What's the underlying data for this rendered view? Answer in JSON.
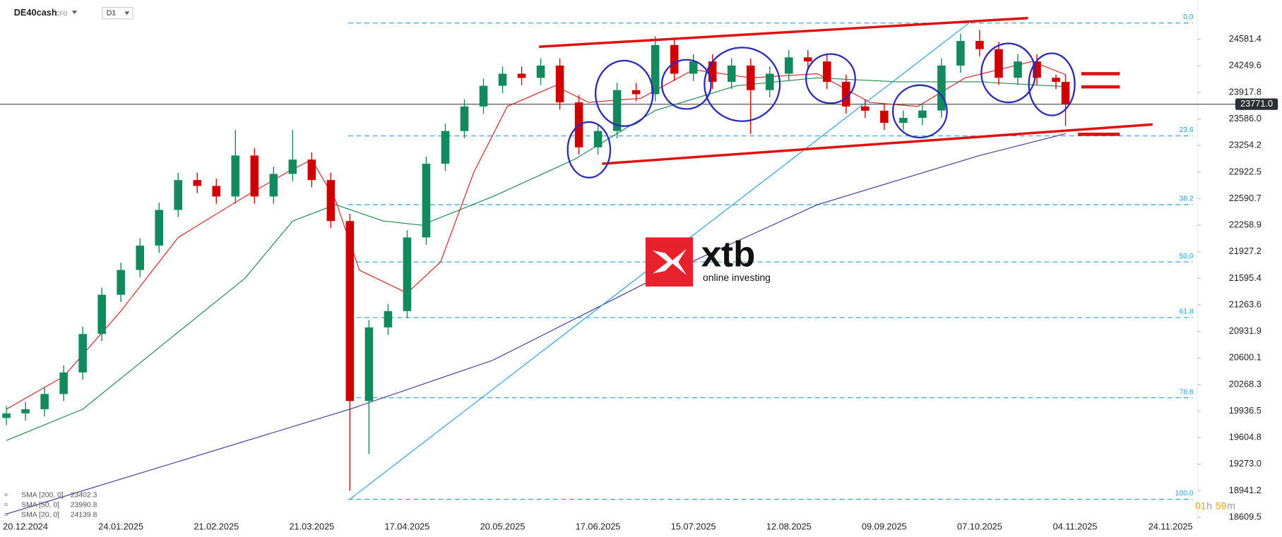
{
  "header": {
    "symbol": "DE40cash",
    "instrument_type": "CFD",
    "timeframe": "D1"
  },
  "logo": {
    "brand": "xtb",
    "tagline": "online investing"
  },
  "timer": {
    "hours": "01",
    "hours_unit": "h",
    "minutes": "59",
    "minutes_unit": "m"
  },
  "chart_data": {
    "type": "candlestick",
    "up_color": "#138a5e",
    "down_color": "#d10000",
    "grid": false,
    "x": [
      -4,
      0,
      4,
      8,
      12,
      16,
      20,
      24,
      28,
      32,
      36,
      40,
      44,
      48,
      52,
      56,
      60,
      64,
      68,
      72,
      76,
      80,
      84,
      88,
      92,
      96,
      100,
      104,
      108,
      112,
      116,
      120,
      124,
      128,
      132,
      136,
      140,
      144,
      148,
      152,
      156,
      160,
      164,
      168,
      172,
      176,
      180,
      184,
      188,
      192,
      196,
      200,
      204,
      208,
      212,
      216,
      218
    ],
    "open": [
      19850,
      19908,
      19960,
      20150,
      20419,
      20900,
      21390,
      21700,
      22004,
      22450,
      22823,
      22750,
      22618,
      23130,
      22618,
      22900,
      23079,
      22823,
      22311,
      20062,
      20982,
      21186,
      22106,
      23027,
      23436,
      23743,
      24001,
      24152,
      24100,
      24254,
      23794,
      23232,
      23436,
      23947,
      23896,
      24510,
      24152,
      24305,
      24050,
      24254,
      23947,
      24152,
      24356,
      24305,
      24050,
      23743,
      23690,
      23538,
      23600,
      23692,
      24254,
      24561,
      24459,
      24101,
      24305,
      24101,
      24050
    ],
    "high": [
      19998,
      20050,
      20240,
      20509,
      20990,
      21480,
      21790,
      22094,
      22540,
      22913,
      22913,
      22840,
      23450,
      23220,
      22990,
      23450,
      23169,
      22913,
      22401,
      21072,
      21276,
      22196,
      23117,
      23526,
      23833,
      24091,
      24242,
      24242,
      24344,
      24344,
      23884,
      23526,
      24037,
      24037,
      24620,
      24600,
      24395,
      24395,
      24344,
      24344,
      24242,
      24446,
      24446,
      24395,
      24140,
      23833,
      23780,
      23690,
      23782,
      24344,
      24651,
      24700,
      24549,
      24395,
      24395,
      24140,
      24140
    ],
    "low": [
      19760,
      19818,
      19870,
      20060,
      20329,
      20810,
      21300,
      21610,
      21914,
      22360,
      22660,
      22528,
      22528,
      22528,
      22528,
      22810,
      22733,
      22221,
      18941,
      19400,
      20892,
      21096,
      22016,
      22937,
      23346,
      23653,
      23911,
      24010,
      24010,
      23704,
      23142,
      23142,
      23346,
      23806,
      23806,
      24062,
      24062,
      23960,
      23960,
      23400,
      23857,
      24062,
      24215,
      23960,
      23653,
      23600,
      23448,
      23448,
      23510,
      23602,
      24164,
      24369,
      24011,
      24011,
      24011,
      23960,
      23500
    ],
    "close": [
      19908,
      19960,
      20150,
      20419,
      20900,
      21390,
      21700,
      22004,
      22450,
      22823,
      22750,
      22618,
      23130,
      22618,
      22900,
      23079,
      22823,
      22311,
      20062,
      20982,
      21186,
      22106,
      23027,
      23436,
      23743,
      24001,
      24152,
      24100,
      24254,
      23794,
      23232,
      23436,
      23947,
      23896,
      24510,
      24152,
      24305,
      24050,
      24254,
      23947,
      24152,
      24356,
      24305,
      24050,
      23743,
      23690,
      23538,
      23600,
      23692,
      24254,
      24561,
      24459,
      24101,
      24305,
      24101,
      24050,
      23771
    ],
    "xlim": [
      -5,
      245
    ],
    "xticks": [
      {
        "value": 0,
        "label": "20.12.2024"
      },
      {
        "value": 20,
        "label": "24.01.2025"
      },
      {
        "value": 40,
        "label": "21.02.2025"
      },
      {
        "value": 60,
        "label": "21.03.2025"
      },
      {
        "value": 80,
        "label": "17.04.2025"
      },
      {
        "value": 100,
        "label": "20.05.2025"
      },
      {
        "value": 120,
        "label": "17.06.2025"
      },
      {
        "value": 140,
        "label": "15.07.2025"
      },
      {
        "value": 160,
        "label": "12.08.2025"
      },
      {
        "value": 180,
        "label": "09.09.2025"
      },
      {
        "value": 200,
        "label": "07.10.2025"
      },
      {
        "value": 220,
        "label": "04.11.2025"
      },
      {
        "value": 240,
        "label": "24.11.2025"
      }
    ],
    "ylim": [
      18527.7,
      25072
    ],
    "yticks": [
      24581.4,
      24249.6,
      23917.8,
      {
        "value": 23586,
        "label": "23586.0"
      },
      23254.2,
      22922.5,
      22590.7,
      22258.9,
      21927.2,
      21595.4,
      21263.6,
      20931.9,
      20600.1,
      20268.3,
      19936.5,
      19604.8,
      {
        "value": 19273,
        "label": "19273.0"
      },
      18941.2,
      18609.5
    ],
    "last_price": {
      "value": 23771,
      "label": "23771.0"
    },
    "fib_levels": [
      {
        "label": "0.0",
        "price": 24786
      },
      {
        "label": "23.6",
        "price": 23375
      },
      {
        "label": "38.2",
        "price": 22516
      },
      {
        "label": "50.0",
        "price": 21800
      },
      {
        "label": "61.8",
        "price": 21105
      },
      {
        "label": "78.6",
        "price": 20103
      },
      {
        "label": "100.0",
        "price": 18834
      }
    ],
    "series": [
      {
        "name": "SMA [200, 0]",
        "color": "#3c3c9e",
        "last_value": 23402.3,
        "x": [
          -4,
          68,
          98,
          132,
          166,
          200,
          218
        ],
        "values": [
          18650,
          19960,
          20573,
          21595,
          22516,
          23130,
          23402
        ]
      },
      {
        "name": "SMA [50, 0]",
        "color": "#1f8a4c",
        "last_value": 23990.8,
        "x": [
          -4,
          12,
          29,
          46,
          56,
          65,
          75,
          83,
          98,
          115,
          132,
          149,
          166,
          183,
          200,
          218
        ],
        "values": [
          19570,
          19960,
          20778,
          21595,
          22311,
          22516,
          22311,
          22260,
          22618,
          23079,
          23692,
          24001,
          24101,
          24050,
          24050,
          23990
        ]
      },
      {
        "name": "SMA [20, 0]",
        "color": "#d42020",
        "last_value": 24139.8,
        "x": [
          -4,
          8,
          20,
          32,
          46,
          55,
          60,
          65,
          70,
          80,
          87,
          94,
          101,
          111,
          118,
          129,
          140,
          152,
          166,
          177,
          187,
          197,
          211,
          218
        ],
        "values": [
          19960,
          20368,
          21186,
          22106,
          22618,
          22925,
          23079,
          22567,
          21697,
          21411,
          21800,
          22925,
          23743,
          24001,
          23794,
          23845,
          24203,
          24101,
          24152,
          23794,
          23743,
          24101,
          24305,
          24140
        ]
      }
    ]
  }
}
